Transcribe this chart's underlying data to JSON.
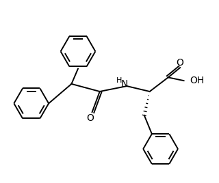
{
  "background_color": "#ffffff",
  "line_color": "#000000",
  "line_width": 1.4,
  "text_color": "#000000",
  "fig_width": 3.2,
  "fig_height": 2.68,
  "dpi": 100,
  "xlim": [
    0,
    10
  ],
  "ylim": [
    0,
    8.4
  ],
  "hex_r": 0.8
}
